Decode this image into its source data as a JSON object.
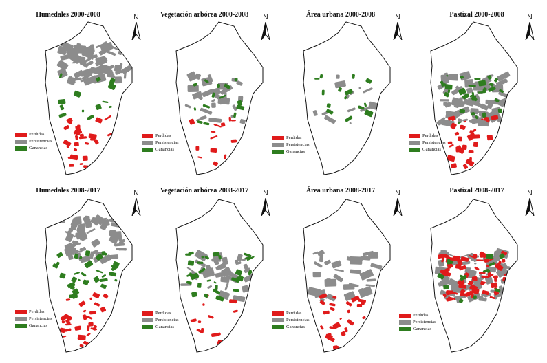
{
  "colors": {
    "perdidas": "#e01b1b",
    "persistencias": "#8c8c8c",
    "ganancias": "#2e7d1f",
    "outline": "#111111",
    "background": "#ffffff"
  },
  "north_label": "N",
  "legend": {
    "perdidas": "Perdidas",
    "persistencias": "Persistencias",
    "ganancias": "Ganancias"
  },
  "panels": [
    {
      "id": "humedales-2000-2008",
      "title": "Humedales 2000-2008",
      "coverage": {
        "perdidas": "medium",
        "persistencias": "high",
        "ganancias": "low"
      }
    },
    {
      "id": "vegetacion-2000-2008",
      "title": "Vegetación arbórea 2000-2008",
      "coverage": {
        "perdidas": "low",
        "persistencias": "medium",
        "ganancias": "low"
      }
    },
    {
      "id": "urbana-2000-2008",
      "title": "Área urbana 2000-2008",
      "coverage": {
        "perdidas": "none",
        "persistencias": "low",
        "ganancias": "low"
      }
    },
    {
      "id": "pastizal-2000-2008",
      "title": "Pastizal 2000-2008",
      "coverage": {
        "perdidas": "medium",
        "persistencias": "high",
        "ganancias": "medium"
      }
    },
    {
      "id": "humedales-2008-2017",
      "title": "Humedales 2008-2017",
      "coverage": {
        "perdidas": "medium",
        "persistencias": "high",
        "ganancias": "medium"
      }
    },
    {
      "id": "vegetacion-2008-2017",
      "title": "Vegetación arbórea 2008-2017",
      "coverage": {
        "perdidas": "low",
        "persistencias": "medium",
        "ganancias": "medium"
      }
    },
    {
      "id": "urbana-2008-2017",
      "title": "Área urbana 2008-2017",
      "coverage": {
        "perdidas": "medium",
        "persistencias": "medium",
        "ganancias": "none"
      }
    },
    {
      "id": "pastizal-2008-2017",
      "title": "Pastizal 2008-2017",
      "coverage": {
        "perdidas": "high",
        "persistencias": "high",
        "ganancias": "low"
      }
    }
  ]
}
